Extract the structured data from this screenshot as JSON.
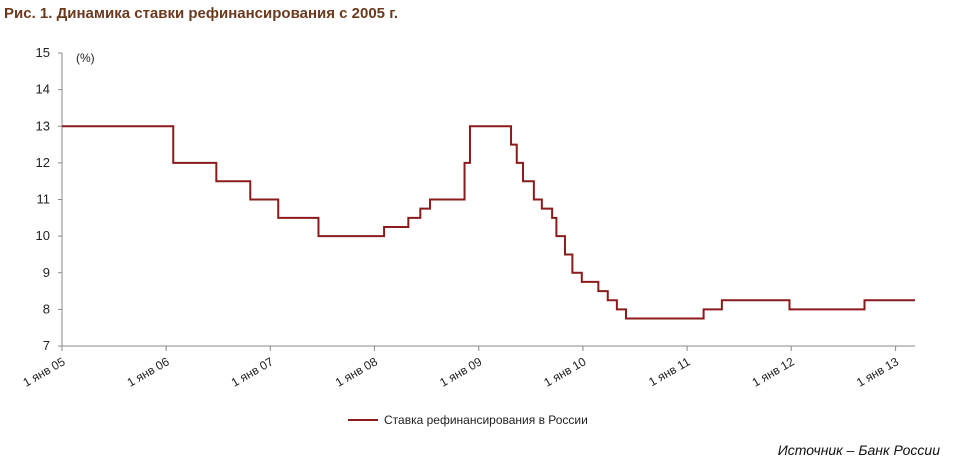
{
  "chart_data": {
    "type": "line",
    "title": "Рис. 1. Динамика ставки рефинансирования с 2005 г.",
    "y_unit_label": "(%)",
    "source": "Источник – Банк России",
    "step": "after",
    "x": [
      "2005-01-01",
      "2006-01-26",
      "2006-06-26",
      "2006-10-23",
      "2007-01-29",
      "2007-06-19",
      "2008-02-04",
      "2008-04-29",
      "2008-06-10",
      "2008-07-14",
      "2008-11-12",
      "2008-12-01",
      "2009-04-24",
      "2009-05-14",
      "2009-06-05",
      "2009-07-13",
      "2009-08-10",
      "2009-09-15",
      "2009-09-30",
      "2009-10-30",
      "2009-11-25",
      "2009-12-28",
      "2010-02-24",
      "2010-03-29",
      "2010-04-30",
      "2010-06-01",
      "2011-02-28",
      "2011-05-03",
      "2011-12-26",
      "2012-09-14",
      "2013-03-10"
    ],
    "series": [
      {
        "name": "Ставка рефинансирования в России",
        "color": "#8b1a1a",
        "values": [
          13,
          12,
          11.5,
          11,
          10.5,
          10,
          10.25,
          10.5,
          10.75,
          11,
          12,
          13,
          12.5,
          12,
          11.5,
          11,
          10.75,
          10.5,
          10,
          9.5,
          9,
          8.75,
          8.5,
          8.25,
          8,
          7.75,
          8,
          8.25,
          8,
          8.25,
          8.25
        ]
      }
    ],
    "xlim": [
      "2005-01-01",
      "2013-03-10"
    ],
    "xticks": [
      {
        "value": "2005-01-01",
        "label": "1 янв 05"
      },
      {
        "value": "2006-01-01",
        "label": "1 янв 06"
      },
      {
        "value": "2007-01-01",
        "label": "1 янв 07"
      },
      {
        "value": "2008-01-01",
        "label": "1 янв 08"
      },
      {
        "value": "2009-01-01",
        "label": "1 янв 09"
      },
      {
        "value": "2010-01-01",
        "label": "1 янв 10"
      },
      {
        "value": "2011-01-01",
        "label": "1 янв 11"
      },
      {
        "value": "2012-01-01",
        "label": "1 янв 12"
      },
      {
        "value": "2013-01-01",
        "label": "1 янв 13"
      }
    ],
    "ylim": [
      7,
      15
    ],
    "yticks": [
      7,
      8,
      9,
      10,
      11,
      12,
      13,
      14,
      15
    ],
    "legend": "bottom"
  }
}
